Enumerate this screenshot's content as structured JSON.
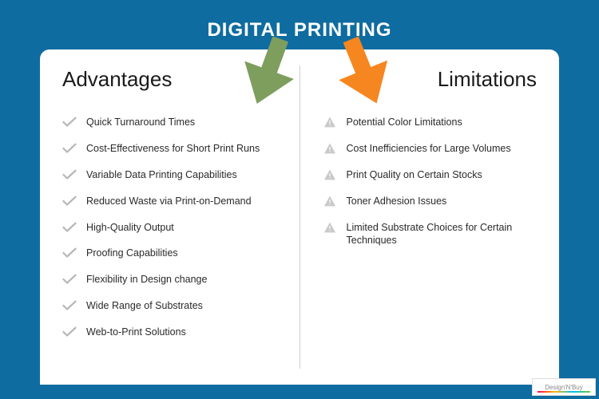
{
  "background_color": "#0f6ca0",
  "title": {
    "text": "DIGITAL PRINTING",
    "color": "#ffffff",
    "fontsize": 24
  },
  "card": {
    "background_color": "#ffffff",
    "border_radius": 12
  },
  "arrows": {
    "left": {
      "fill": "#7e9e5e",
      "rotation_deg": 20
    },
    "right": {
      "fill": "#f6861f",
      "rotation_deg": -22
    }
  },
  "columns": {
    "advantages": {
      "heading": "Advantages",
      "icon": {
        "type": "check",
        "stroke": "#b8b8b8",
        "stroke_width": 3
      },
      "items": [
        "Quick Turnaround Times",
        "Cost-Effectiveness for Short Print Runs",
        "Variable Data Printing Capabilities",
        "Reduced Waste via Print-on-Demand",
        "High-Quality Output",
        "Proofing Capabilities",
        "Flexibility in Design change",
        "Wide Range of Substrates",
        "Web-to-Print Solutions"
      ]
    },
    "limitations": {
      "heading": "Limitations",
      "icon": {
        "type": "warning",
        "fill": "#c9c9c9",
        "bang": "#ffffff"
      },
      "items": [
        "Potential Color Limitations",
        "Cost Inefficiencies for Large Volumes",
        "Print Quality on Certain Stocks",
        "Toner Adhesion Issues",
        "Limited Substrate Choices for Certain Techniques"
      ]
    }
  },
  "logo": {
    "text": "Design'N'Buy"
  }
}
